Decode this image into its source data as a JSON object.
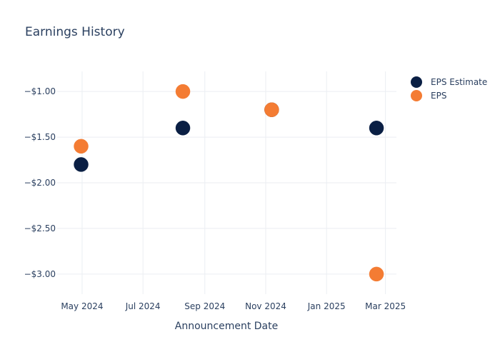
{
  "chart_data": {
    "type": "scatter",
    "title": "Earnings History",
    "xlabel": "Announcement Date",
    "ylabel": "",
    "x_ticks": [
      {
        "date": "2024-05-01",
        "label": "May 2024"
      },
      {
        "date": "2024-07-01",
        "label": "Jul 2024"
      },
      {
        "date": "2024-09-01",
        "label": "Sep 2024"
      },
      {
        "date": "2024-11-01",
        "label": "Nov 2024"
      },
      {
        "date": "2025-01-01",
        "label": "Jan 2025"
      },
      {
        "date": "2025-03-01",
        "label": "Mar 2025"
      }
    ],
    "y_ticks": [
      {
        "value": -1.0,
        "label": "−$1.00"
      },
      {
        "value": -1.5,
        "label": "−$1.50"
      },
      {
        "value": -2.0,
        "label": "−$2.00"
      },
      {
        "value": -2.5,
        "label": "−$2.50"
      },
      {
        "value": -3.0,
        "label": "−$3.00"
      }
    ],
    "xlim": [
      "2024-04-06",
      "2025-03-12"
    ],
    "ylim": [
      -3.22,
      -0.78
    ],
    "grid": true,
    "legend_position": "top-right",
    "series": [
      {
        "name": "EPS Estimate",
        "color": "#0a1f44",
        "points": [
          {
            "date": "2024-04-30",
            "value": -1.8
          },
          {
            "date": "2024-08-10",
            "value": -1.4
          },
          {
            "date": "2024-11-07",
            "value": -1.2
          },
          {
            "date": "2025-02-20",
            "value": -1.4
          }
        ]
      },
      {
        "name": "EPS",
        "color": "#f47c33",
        "points": [
          {
            "date": "2024-04-30",
            "value": -1.6
          },
          {
            "date": "2024-08-10",
            "value": -1.0
          },
          {
            "date": "2024-11-07",
            "value": -1.2
          },
          {
            "date": "2025-02-20",
            "value": -3.0
          }
        ]
      }
    ]
  }
}
